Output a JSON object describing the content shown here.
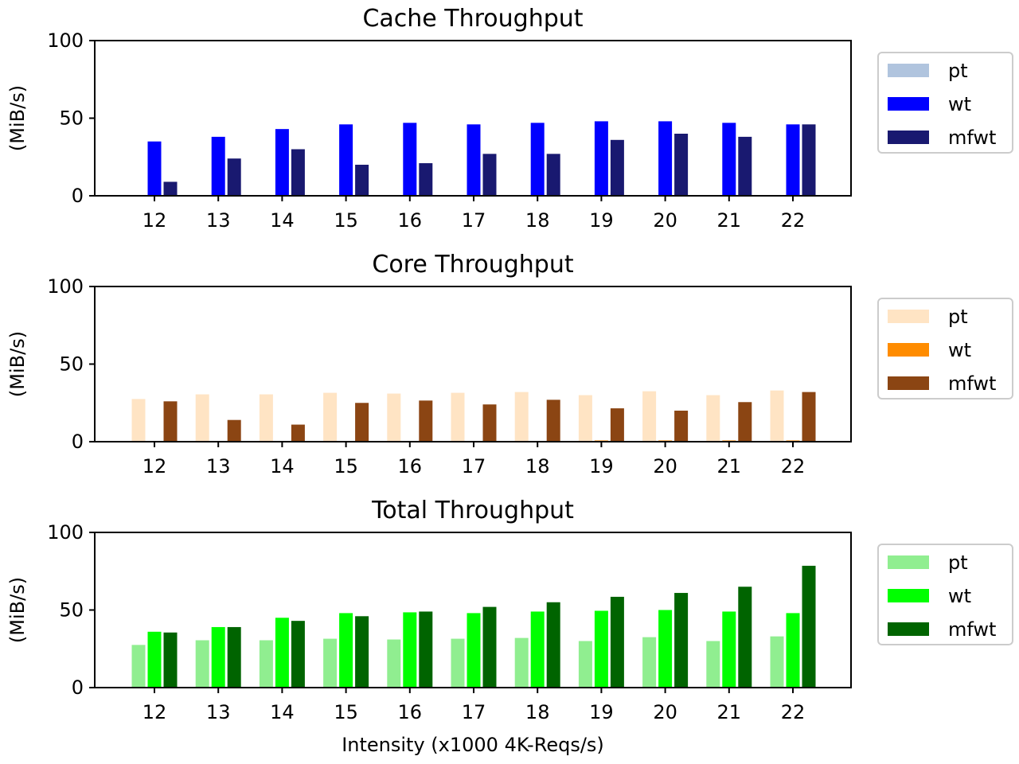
{
  "figure": {
    "xlabel": "Intensity (x1000 4K-Reqs/s)"
  },
  "chart_data": [
    {
      "type": "bar",
      "title": "Cache Throughput",
      "xlabel": "",
      "ylabel": "(MiB/s)",
      "ylim": [
        0,
        100
      ],
      "yticks": [
        "0",
        "50",
        "100"
      ],
      "categories": [
        "12",
        "13",
        "14",
        "15",
        "16",
        "17",
        "18",
        "19",
        "20",
        "21",
        "22"
      ],
      "legend_position": "outside-right",
      "series": [
        {
          "name": "pt",
          "color": "#b0c4de",
          "values": [
            0,
            0,
            0,
            0,
            0,
            0,
            0,
            0,
            0,
            0,
            0
          ]
        },
        {
          "name": "wt",
          "color": "#0000ff",
          "values": [
            35,
            38,
            43,
            46,
            47,
            46,
            47,
            48,
            48,
            47,
            46
          ]
        },
        {
          "name": "mfwt",
          "color": "#191970",
          "values": [
            9,
            24,
            30,
            20,
            21,
            27,
            27,
            36,
            40,
            38,
            46
          ]
        }
      ]
    },
    {
      "type": "bar",
      "title": "Core Throughput",
      "xlabel": "",
      "ylabel": "(MiB/s)",
      "ylim": [
        0,
        100
      ],
      "yticks": [
        "0",
        "50",
        "100"
      ],
      "categories": [
        "12",
        "13",
        "14",
        "15",
        "16",
        "17",
        "18",
        "19",
        "20",
        "21",
        "22"
      ],
      "legend_position": "outside-right",
      "series": [
        {
          "name": "pt",
          "color": "#ffe4c4",
          "values": [
            27.5,
            30.5,
            30.5,
            31.5,
            31,
            31.5,
            32,
            30,
            32.5,
            30,
            33
          ]
        },
        {
          "name": "wt",
          "color": "#ff8c00",
          "values": [
            0,
            0,
            0,
            0,
            0,
            0,
            0,
            0.8,
            0.8,
            0.8,
            0.8
          ]
        },
        {
          "name": "mfwt",
          "color": "#8b4513",
          "values": [
            26,
            14,
            11,
            25,
            26.5,
            24,
            27,
            21.5,
            20,
            25.5,
            32
          ]
        }
      ]
    },
    {
      "type": "bar",
      "title": "Total Throughput",
      "xlabel": "Intensity (x1000 4K-Reqs/s)",
      "ylabel": "(MiB/s)",
      "ylim": [
        0,
        100
      ],
      "yticks": [
        "0",
        "50",
        "100"
      ],
      "categories": [
        "12",
        "13",
        "14",
        "15",
        "16",
        "17",
        "18",
        "19",
        "20",
        "21",
        "22"
      ],
      "legend_position": "outside-right",
      "series": [
        {
          "name": "pt",
          "color": "#90ee90",
          "values": [
            27.5,
            30.5,
            30.5,
            31.5,
            31,
            31.5,
            32,
            30,
            32.5,
            30,
            33
          ]
        },
        {
          "name": "wt",
          "color": "#00ff00",
          "values": [
            36,
            39,
            45,
            48,
            48.5,
            48,
            49,
            49.5,
            50,
            49,
            48
          ]
        },
        {
          "name": "mfwt",
          "color": "#006400",
          "values": [
            35.5,
            39,
            43,
            46,
            49,
            52,
            55,
            58.5,
            61,
            65,
            78.5
          ]
        }
      ]
    }
  ]
}
